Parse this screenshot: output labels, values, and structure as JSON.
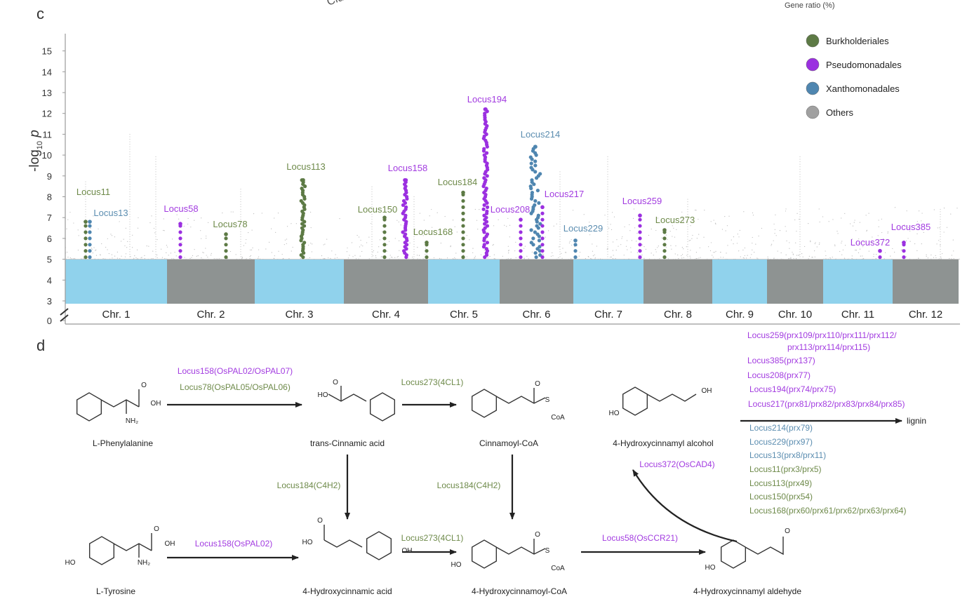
{
  "cropped_top": {
    "left_text": "Clu",
    "right_text": "Gene ratio (%)"
  },
  "panel_c": {
    "letter": "c"
  },
  "panel_d": {
    "letter": "d"
  },
  "colors": {
    "Burkholderiales": "#5d7a45",
    "Pseudomonadales": "#9b30e0",
    "Xanthomonadales": "#4f86b0",
    "Others": "#a0a0a0",
    "band_odd": "#90d2ec",
    "band_even": "#8e9392",
    "text_purple": "#a23be0",
    "text_green": "#6e8a4a",
    "text_blue": "#5b8db0"
  },
  "chart_data": {
    "type": "scatter",
    "subtype": "manhattan",
    "title": "",
    "xlabel": "",
    "ylabel": "-log10 p",
    "ylabel_main": "-log",
    "ylabel_sub": "10",
    "ylabel_var": "p",
    "yticks": [
      "0",
      "3",
      "4",
      "5",
      "6",
      "7",
      "8",
      "9",
      "10",
      "11",
      "12",
      "13",
      "14",
      "15"
    ],
    "ylim": [
      0,
      15.5
    ],
    "y_axis_broken_between": [
      0,
      3
    ],
    "threshold": 5,
    "grid": false,
    "categories": [
      "Chr. 1",
      "Chr. 2",
      "Chr. 3",
      "Chr. 4",
      "Chr. 5",
      "Chr. 6",
      "Chr. 7",
      "Chr. 8",
      "Chr. 9",
      "Chr. 10",
      "Chr. 11",
      "Chr. 12"
    ],
    "legend_position": "top-right",
    "legend": [
      "Burkholderiales",
      "Pseudomonadales",
      "Xanthomonadales",
      "Others"
    ],
    "loci": [
      {
        "name": "Locus11",
        "chr": "Chr. 1",
        "order": "Burkholderiales",
        "max": 6.8
      },
      {
        "name": "Locus13",
        "chr": "Chr. 1",
        "order": "Xanthomonadales",
        "max": 6.8
      },
      {
        "name": "Locus58",
        "chr": "Chr. 2",
        "order": "Pseudomonadales",
        "max": 6.7
      },
      {
        "name": "Locus78",
        "chr": "Chr. 2",
        "order": "Burkholderiales",
        "max": 6.2
      },
      {
        "name": "Locus113",
        "chr": "Chr. 3",
        "order": "Burkholderiales",
        "max": 8.8
      },
      {
        "name": "Locus150",
        "chr": "Chr. 4",
        "order": "Burkholderiales",
        "max": 7.0
      },
      {
        "name": "Locus158",
        "chr": "Chr. 4",
        "order": "Pseudomonadales",
        "max": 8.8
      },
      {
        "name": "Locus168",
        "chr": "Chr. 4",
        "order": "Burkholderiales",
        "max": 5.8
      },
      {
        "name": "Locus184",
        "chr": "Chr. 5",
        "order": "Burkholderiales",
        "max": 8.2
      },
      {
        "name": "Locus194",
        "chr": "Chr. 5",
        "order": "Pseudomonadales",
        "max": 12.2
      },
      {
        "name": "Locus208",
        "chr": "Chr. 6",
        "order": "Pseudomonadales",
        "max": 6.9
      },
      {
        "name": "Locus214",
        "chr": "Chr. 6",
        "order": "Xanthomonadales",
        "max": 10.4
      },
      {
        "name": "Locus217",
        "chr": "Chr. 6",
        "order": "Pseudomonadales",
        "max": 7.5
      },
      {
        "name": "Locus229",
        "chr": "Chr. 7",
        "order": "Xanthomonadales",
        "max": 5.9
      },
      {
        "name": "Locus259",
        "chr": "Chr. 8",
        "order": "Pseudomonadales",
        "max": 7.1
      },
      {
        "name": "Locus273",
        "chr": "Chr. 8",
        "order": "Burkholderiales",
        "max": 6.4
      },
      {
        "name": "Locus372",
        "chr": "Chr. 11",
        "order": "Pseudomonadales",
        "max": 5.4
      },
      {
        "name": "Locus385",
        "chr": "Chr. 12",
        "order": "Pseudomonadales",
        "max": 5.8
      }
    ]
  },
  "pathway": {
    "compounds": [
      {
        "id": "phe",
        "label": "L-Phenylalanine",
        "atoms": [
          "O",
          "OH",
          "NH₂"
        ]
      },
      {
        "id": "tca",
        "label": "trans-Cinnamic acid",
        "atoms": [
          "O",
          "HO"
        ]
      },
      {
        "id": "cinnamoyl",
        "label": "Cinnamoyl-CoA",
        "atoms": [
          "O",
          "S",
          "CoA"
        ]
      },
      {
        "id": "alcohol",
        "label": "4-Hydroxycinnamyl alcohol",
        "atoms": [
          "HO",
          "OH"
        ]
      },
      {
        "id": "tyr",
        "label": "L-Tyrosine",
        "atoms": [
          "O",
          "OH",
          "NH₂",
          "HO"
        ]
      },
      {
        "id": "hca",
        "label": "4-Hydroxycinnamic acid",
        "atoms": [
          "O",
          "HO",
          "OH"
        ]
      },
      {
        "id": "hcoa",
        "label": "4-Hydroxycinnamoyl-CoA",
        "atoms": [
          "O",
          "S",
          "CoA",
          "HO"
        ]
      },
      {
        "id": "aldehyde",
        "label": "4-Hydroxycinnamyl aldehyde",
        "atoms": [
          "O",
          "HO"
        ]
      }
    ],
    "enzymes": [
      {
        "text": "Locus158(OsPAL02/OsPAL07)",
        "color": "purple"
      },
      {
        "text": "Locus78(OsPAL05/OsPAL06)",
        "color": "green"
      },
      {
        "text": "Locus273(4CL1)",
        "color": "green"
      },
      {
        "text": "Locus184(C4H2)",
        "color": "green"
      },
      {
        "text": "Locus184(C4H2)",
        "color": "green"
      },
      {
        "text": "Locus158(OsPAL02)",
        "color": "purple"
      },
      {
        "text": "Locus273(4CL1)",
        "color": "green"
      },
      {
        "text": "Locus58(OsCCR21)",
        "color": "purple"
      },
      {
        "text": "Locus372(OsCAD4)",
        "color": "purple"
      }
    ],
    "product": "lignin",
    "peroxidases": [
      {
        "text": "Locus259(prx109/prx110/prx111/prx112/",
        "color": "purple"
      },
      {
        "text": "prx113/prx114/prx115)",
        "color": "purple"
      },
      {
        "text": "Locus385(prx137)",
        "color": "purple"
      },
      {
        "text": "Locus208(prx77)",
        "color": "purple"
      },
      {
        "text": "Locus194(prx74/prx75)",
        "color": "purple"
      },
      {
        "text": "Locus217(prx81/prx82/prx83/prx84/prx85)",
        "color": "purple"
      },
      {
        "text": "Locus214(prx79)",
        "color": "blue"
      },
      {
        "text": "Locus229(prx97)",
        "color": "blue"
      },
      {
        "text": "Locus13(prx8/prx11)",
        "color": "blue"
      },
      {
        "text": "Locus11(prx3/prx5)",
        "color": "green"
      },
      {
        "text": "Locus113(prx49)",
        "color": "green"
      },
      {
        "text": "Locus150(prx54)",
        "color": "green"
      },
      {
        "text": "Locus168(prx60/prx61/prx62/prx63/prx64)",
        "color": "green"
      }
    ]
  }
}
